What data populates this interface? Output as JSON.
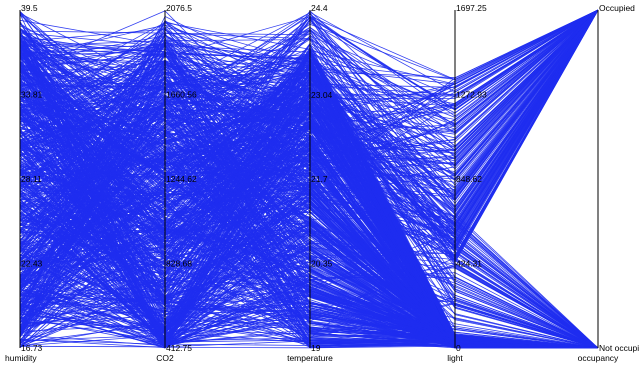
{
  "chart_data": {
    "type": "parallel_coordinates",
    "title": "",
    "line_color": "#1f2ef0",
    "axes": [
      {
        "name": "humidity",
        "kind": "numeric",
        "range": [
          16.73,
          39.5
        ],
        "ticks": [
          "16.73",
          "22.43",
          "28.11",
          "33.81",
          "39.5"
        ],
        "tick_values": [
          16.73,
          22.43,
          28.11,
          33.81,
          39.5
        ]
      },
      {
        "name": "CO2",
        "kind": "numeric",
        "range": [
          412.75,
          2076.5
        ],
        "ticks": [
          "412.75",
          "828.68",
          "1244.62",
          "1660.56",
          "2076.5"
        ],
        "tick_values": [
          412.75,
          828.68,
          1244.62,
          1660.56,
          2076.5
        ]
      },
      {
        "name": "temperature",
        "kind": "numeric",
        "range": [
          19,
          24.4
        ],
        "ticks": [
          "19",
          "20.35",
          "21.7",
          "23.04",
          "24.4"
        ],
        "tick_values": [
          19,
          20.35,
          21.7,
          23.04,
          24.4
        ]
      },
      {
        "name": "light",
        "kind": "numeric",
        "range": [
          0,
          1697.25
        ],
        "ticks": [
          "0",
          "424.31",
          "848.62",
          "1272.93",
          "1697.25"
        ],
        "tick_values": [
          0,
          424.31,
          848.62,
          1272.93,
          1697.25
        ]
      },
      {
        "name": "occupancy",
        "kind": "categorical",
        "categories": [
          "Not occupied",
          "Occupied"
        ]
      }
    ]
  }
}
